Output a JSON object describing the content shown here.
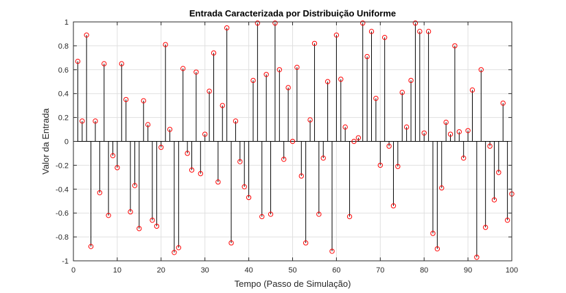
{
  "chart_data": {
    "type": "stem",
    "title": "Entrada Caracterizada por Distribuição Uniforme",
    "xlabel": "Tempo (Passo de Simulação)",
    "ylabel": "Valor da Entrada",
    "xlim": [
      0,
      100
    ],
    "ylim": [
      -1,
      1
    ],
    "xticks": [
      "0",
      "10",
      "20",
      "30",
      "40",
      "50",
      "60",
      "70",
      "80",
      "90",
      "100"
    ],
    "yticks": [
      "-1",
      "-0.8",
      "-0.6",
      "-0.4",
      "-0.2",
      "0",
      "0.2",
      "0.4",
      "0.6",
      "0.8",
      "1"
    ],
    "grid": true,
    "stem_color": "#000000",
    "marker_color": "#ff0000",
    "x": [
      1,
      2,
      3,
      4,
      5,
      6,
      7,
      8,
      9,
      10,
      11,
      12,
      13,
      14,
      15,
      16,
      17,
      18,
      19,
      20,
      21,
      22,
      23,
      24,
      25,
      26,
      27,
      28,
      29,
      30,
      31,
      32,
      33,
      34,
      35,
      36,
      37,
      38,
      39,
      40,
      41,
      42,
      43,
      44,
      45,
      46,
      47,
      48,
      49,
      50,
      51,
      52,
      53,
      54,
      55,
      56,
      57,
      58,
      59,
      60,
      61,
      62,
      63,
      64,
      65,
      66,
      67,
      68,
      69,
      70,
      71,
      72,
      73,
      74,
      75,
      76,
      77,
      78,
      79,
      80,
      81,
      82,
      83,
      84,
      85,
      86,
      87,
      88,
      89,
      90,
      91,
      92,
      93,
      94,
      95,
      96,
      97,
      98,
      99,
      100
    ],
    "values": [
      0.67,
      0.17,
      0.89,
      -0.88,
      0.17,
      -0.43,
      0.65,
      -0.62,
      -0.12,
      -0.22,
      0.65,
      0.35,
      -0.59,
      -0.37,
      -0.73,
      0.34,
      0.14,
      -0.66,
      -0.71,
      -0.05,
      0.81,
      0.1,
      -0.93,
      -0.89,
      0.61,
      -0.1,
      -0.24,
      0.58,
      -0.27,
      0.06,
      0.42,
      0.74,
      -0.34,
      0.3,
      0.95,
      -0.85,
      0.17,
      -0.17,
      -0.38,
      -0.47,
      0.51,
      0.99,
      -0.63,
      0.56,
      -0.61,
      0.99,
      0.6,
      -0.15,
      0.45,
      0.0,
      0.62,
      -0.29,
      -0.85,
      0.18,
      0.82,
      -0.61,
      -0.14,
      0.5,
      -0.92,
      0.89,
      0.52,
      0.12,
      -0.63,
      0.0,
      0.03,
      0.99,
      0.71,
      0.92,
      0.36,
      -0.2,
      0.87,
      -0.04,
      -0.54,
      -0.21,
      0.41,
      0.12,
      0.51,
      0.99,
      0.92,
      0.07,
      0.92,
      -0.77,
      -0.9,
      -0.39,
      0.16,
      0.06,
      0.8,
      0.08,
      -0.14,
      0.09,
      0.43,
      -0.97,
      0.6,
      -0.72,
      -0.04,
      -0.49,
      -0.26,
      0.32,
      -0.66,
      -0.44
    ]
  }
}
